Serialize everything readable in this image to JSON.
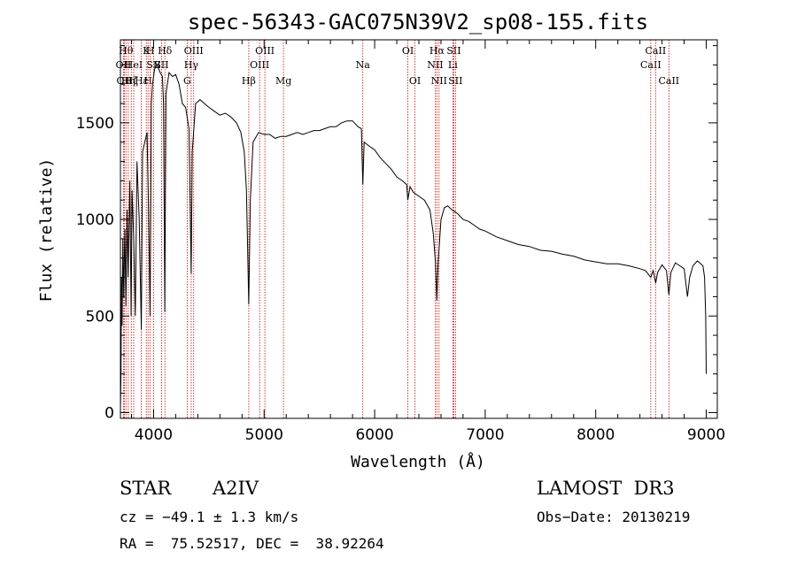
{
  "chart_data": {
    "type": "line",
    "title": "spec-56343-GAC075N39V2_sp08-155.fits",
    "xlabel": "Wavelength (Å)",
    "ylabel": "Flux (relative)",
    "xlim": [
      3700,
      9100
    ],
    "ylim": [
      -30,
      1930
    ],
    "xticks": [
      4000,
      5000,
      6000,
      7000,
      8000,
      9000
    ],
    "yticks": [
      0,
      500,
      1000,
      1500
    ],
    "series": [
      {
        "name": "spectrum",
        "points": [
          [
            3700,
            20
          ],
          [
            3705,
            200
          ],
          [
            3710,
            700
          ],
          [
            3715,
            450
          ],
          [
            3722,
            900
          ],
          [
            3730,
            600
          ],
          [
            3740,
            950
          ],
          [
            3750,
            550
          ],
          [
            3760,
            1050
          ],
          [
            3770,
            700
          ],
          [
            3785,
            1200
          ],
          [
            3797,
            500
          ],
          [
            3805,
            1150
          ],
          [
            3820,
            900
          ],
          [
            3835,
            500
          ],
          [
            3850,
            1300
          ],
          [
            3870,
            1000
          ],
          [
            3889,
            430
          ],
          [
            3900,
            1350
          ],
          [
            3920,
            1400
          ],
          [
            3940,
            1450
          ],
          [
            3955,
            1050
          ],
          [
            3968,
            500
          ],
          [
            3980,
            1600
          ],
          [
            3990,
            1700
          ],
          [
            4000,
            1740
          ],
          [
            4010,
            1780
          ],
          [
            4030,
            1800
          ],
          [
            4060,
            1760
          ],
          [
            4080,
            1740
          ],
          [
            4090,
            1600
          ],
          [
            4101,
            520
          ],
          [
            4112,
            1650
          ],
          [
            4140,
            1760
          ],
          [
            4170,
            1740
          ],
          [
            4200,
            1750
          ],
          [
            4230,
            1700
          ],
          [
            4260,
            1600
          ],
          [
            4290,
            1580
          ],
          [
            4320,
            1470
          ],
          [
            4340,
            720
          ],
          [
            4350,
            1350
          ],
          [
            4380,
            1600
          ],
          [
            4420,
            1620
          ],
          [
            4460,
            1600
          ],
          [
            4500,
            1580
          ],
          [
            4550,
            1560
          ],
          [
            4600,
            1540
          ],
          [
            4650,
            1550
          ],
          [
            4700,
            1530
          ],
          [
            4750,
            1500
          ],
          [
            4790,
            1450
          ],
          [
            4820,
            1350
          ],
          [
            4840,
            1150
          ],
          [
            4861,
            560
          ],
          [
            4875,
            1100
          ],
          [
            4900,
            1400
          ],
          [
            4950,
            1450
          ],
          [
            5000,
            1440
          ],
          [
            5050,
            1440
          ],
          [
            5100,
            1420
          ],
          [
            5150,
            1430
          ],
          [
            5200,
            1430
          ],
          [
            5250,
            1440
          ],
          [
            5300,
            1450
          ],
          [
            5350,
            1440
          ],
          [
            5400,
            1450
          ],
          [
            5450,
            1460
          ],
          [
            5500,
            1460
          ],
          [
            5550,
            1470
          ],
          [
            5600,
            1480
          ],
          [
            5650,
            1480
          ],
          [
            5700,
            1500
          ],
          [
            5750,
            1510
          ],
          [
            5800,
            1510
          ],
          [
            5850,
            1480
          ],
          [
            5880,
            1470
          ],
          [
            5893,
            1180
          ],
          [
            5905,
            1400
          ],
          [
            5950,
            1380
          ],
          [
            6000,
            1360
          ],
          [
            6050,
            1320
          ],
          [
            6100,
            1290
          ],
          [
            6150,
            1260
          ],
          [
            6200,
            1220
          ],
          [
            6250,
            1200
          ],
          [
            6290,
            1180
          ],
          [
            6300,
            1100
          ],
          [
            6320,
            1170
          ],
          [
            6350,
            1140
          ],
          [
            6400,
            1120
          ],
          [
            6450,
            1100
          ],
          [
            6500,
            1050
          ],
          [
            6530,
            930
          ],
          [
            6550,
            780
          ],
          [
            6563,
            580
          ],
          [
            6575,
            780
          ],
          [
            6600,
            1000
          ],
          [
            6630,
            1060
          ],
          [
            6660,
            1070
          ],
          [
            6700,
            1050
          ],
          [
            6750,
            1030
          ],
          [
            6800,
            1000
          ],
          [
            6850,
            990
          ],
          [
            6900,
            970
          ],
          [
            6950,
            950
          ],
          [
            7000,
            940
          ],
          [
            7100,
            910
          ],
          [
            7200,
            890
          ],
          [
            7300,
            870
          ],
          [
            7400,
            860
          ],
          [
            7500,
            840
          ],
          [
            7600,
            835
          ],
          [
            7700,
            820
          ],
          [
            7800,
            810
          ],
          [
            7900,
            790
          ],
          [
            8000,
            780
          ],
          [
            8100,
            770
          ],
          [
            8200,
            770
          ],
          [
            8300,
            760
          ],
          [
            8400,
            745
          ],
          [
            8450,
            735
          ],
          [
            8498,
            700
          ],
          [
            8520,
            735
          ],
          [
            8542,
            670
          ],
          [
            8560,
            725
          ],
          [
            8600,
            765
          ],
          [
            8640,
            735
          ],
          [
            8662,
            610
          ],
          [
            8680,
            725
          ],
          [
            8720,
            775
          ],
          [
            8760,
            760
          ],
          [
            8800,
            745
          ],
          [
            8830,
            600
          ],
          [
            8850,
            700
          ],
          [
            8880,
            760
          ],
          [
            8920,
            785
          ],
          [
            8950,
            770
          ],
          [
            8970,
            760
          ],
          [
            8985,
            700
          ],
          [
            8995,
            500
          ],
          [
            9000,
            200
          ]
        ]
      }
    ],
    "lines": [
      {
        "w": 3727,
        "label": "OII",
        "row": 2
      },
      {
        "w": 3735,
        "label": "OII",
        "row": 3
      },
      {
        "w": 3750,
        "label": "Hθ",
        "row": 1
      },
      {
        "w": 3771,
        "label": "Hη",
        "row": 3
      },
      {
        "w": 3798,
        "label": "Hζ",
        "row": 3
      },
      {
        "w": 3820,
        "label": "HeI",
        "row": 2
      },
      {
        "w": 3889,
        "label": "Hε",
        "row": 3
      },
      {
        "w": 3934,
        "label": "K",
        "row": 1
      },
      {
        "w": 3950,
        "label": "H",
        "row": 3
      },
      {
        "w": 3970,
        "label": "H",
        "row": 1
      },
      {
        "w": 4000,
        "label": "SII",
        "row": 2
      },
      {
        "w": 4072,
        "label": "SII",
        "row": 2
      },
      {
        "w": 4102,
        "label": "Hδ",
        "row": 1
      },
      {
        "w": 4304,
        "label": "G",
        "row": 3
      },
      {
        "w": 4340,
        "label": "Hγ",
        "row": 2
      },
      {
        "w": 4363,
        "label": "OIII",
        "row": 1
      },
      {
        "w": 4861,
        "label": "Hβ",
        "row": 3
      },
      {
        "w": 4959,
        "label": "OIII",
        "row": 2
      },
      {
        "w": 5007,
        "label": "OIII",
        "row": 1
      },
      {
        "w": 5175,
        "label": "Mg",
        "row": 3
      },
      {
        "w": 5893,
        "label": "Na",
        "row": 2
      },
      {
        "w": 6300,
        "label": "OI",
        "row": 1
      },
      {
        "w": 6364,
        "label": "OI",
        "row": 3
      },
      {
        "w": 6548,
        "label": "NII",
        "row": 2
      },
      {
        "w": 6563,
        "label": "Hα",
        "row": 1
      },
      {
        "w": 6583,
        "label": "NII",
        "row": 3
      },
      {
        "w": 6707,
        "label": "Li",
        "row": 2
      },
      {
        "w": 6716,
        "label": "SII",
        "row": 1
      },
      {
        "w": 6731,
        "label": "SII",
        "row": 3
      },
      {
        "w": 8498,
        "label": "CaII",
        "row": 2
      },
      {
        "w": 8542,
        "label": "CaII",
        "row": 1
      },
      {
        "w": 8662,
        "label": "CaII",
        "row": 3
      }
    ]
  },
  "info": {
    "object_class": "STAR",
    "subclass": "A2IV",
    "survey": "LAMOST  DR3",
    "cz": "cz = −49.1 ± 1.3 km/s",
    "obs_date": "Obs−Date: 20130219",
    "coords": "RA =  75.52517, DEC =  38.92264"
  },
  "colors": {
    "spectrum": "#000000",
    "line_marker": "#cc0000",
    "axis": "#000000"
  }
}
